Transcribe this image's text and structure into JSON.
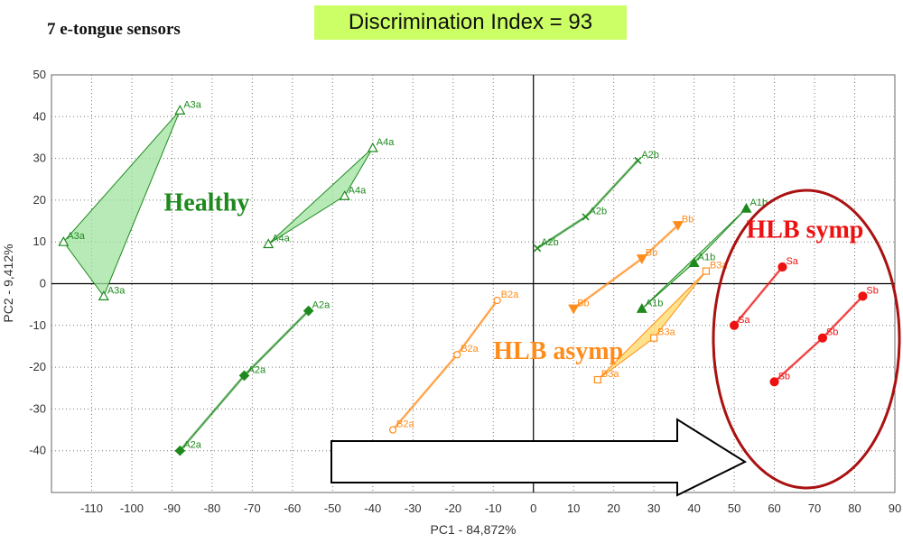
{
  "header": {
    "title": "7 e-tongue sensors",
    "discrimination_index": "Discrimination Index = 93"
  },
  "chart_data": {
    "type": "scatter",
    "xlabel": "PC1 - 84,872%",
    "ylabel": "PC2 - 9,412%",
    "xlim": [
      -120,
      90
    ],
    "ylim": [
      -50,
      50
    ],
    "xticks": [
      -110,
      -100,
      -90,
      -80,
      -70,
      -60,
      -50,
      -40,
      -30,
      -20,
      -10,
      0,
      10,
      20,
      30,
      40,
      50,
      60,
      70,
      80,
      90
    ],
    "yticks": [
      50,
      40,
      30,
      20,
      10,
      0,
      -10,
      -20,
      -30,
      -40
    ],
    "grid": true,
    "colors": {
      "healthy": "#1e8a1e",
      "healthy_fill": "#9fe39f",
      "asymp": "#ff8c1a",
      "asymp_fill": "#ffd966",
      "symp": "#ee1111",
      "ellipse": "#aa1111"
    },
    "group_labels": [
      {
        "text": "Healthy",
        "color": "#1e8a1e"
      },
      {
        "text": "HLB asymp",
        "color": "#ff8c1a"
      },
      {
        "text": "HLB symp",
        "color": "#ee1111"
      }
    ],
    "groups": [
      {
        "group": "healthy",
        "marker": "triangle",
        "filled": false,
        "polygon": true,
        "points": [
          {
            "label": "A3a",
            "x": -88,
            "y": 41.5
          },
          {
            "label": "A3a",
            "x": -117,
            "y": 10
          },
          {
            "label": "A3a",
            "x": -107,
            "y": -3
          }
        ]
      },
      {
        "group": "healthy",
        "marker": "triangle",
        "filled": false,
        "polygon": true,
        "points": [
          {
            "label": "A4a",
            "x": -40,
            "y": 32.5
          },
          {
            "label": "A4a",
            "x": -47,
            "y": 21
          },
          {
            "label": "A4a",
            "x": -66,
            "y": 9.5
          }
        ]
      },
      {
        "group": "healthy",
        "marker": "diamond",
        "filled": true,
        "polygon": false,
        "points": [
          {
            "label": "A2a",
            "x": -56,
            "y": -6.5
          },
          {
            "label": "A2a",
            "x": -72,
            "y": -22
          },
          {
            "label": "A2a",
            "x": -88,
            "y": -40
          }
        ]
      },
      {
        "group": "healthy",
        "marker": "x",
        "filled": false,
        "polygon": false,
        "points": [
          {
            "label": "A2b",
            "x": 26,
            "y": 29.5
          },
          {
            "label": "A2b",
            "x": 13,
            "y": 16
          },
          {
            "label": "A2b",
            "x": 1,
            "y": 8.5
          }
        ]
      },
      {
        "group": "healthy",
        "marker": "triangle",
        "filled": true,
        "polygon": true,
        "points": [
          {
            "label": "A1b",
            "x": 53,
            "y": 18
          },
          {
            "label": "A1b",
            "x": 40,
            "y": 5
          },
          {
            "label": "A1b",
            "x": 27,
            "y": -6
          }
        ]
      },
      {
        "group": "asymp",
        "marker": "triangle-down",
        "filled": true,
        "polygon": false,
        "points": [
          {
            "label": "Bb",
            "x": 36,
            "y": 14
          },
          {
            "label": "Bb",
            "x": 27,
            "y": 6
          },
          {
            "label": "Bb",
            "x": 10,
            "y": -6
          }
        ]
      },
      {
        "group": "asymp",
        "marker": "square",
        "filled": false,
        "polygon": true,
        "points": [
          {
            "label": "B3a",
            "x": 43,
            "y": 3
          },
          {
            "label": "B3a",
            "x": 30,
            "y": -13
          },
          {
            "label": "B3a",
            "x": 16,
            "y": -23
          }
        ]
      },
      {
        "group": "asymp",
        "marker": "circle",
        "filled": false,
        "polygon": false,
        "points": [
          {
            "label": "B2a",
            "x": -9,
            "y": -4
          },
          {
            "label": "B2a",
            "x": -19,
            "y": -17
          },
          {
            "label": "B2a",
            "x": -35,
            "y": -35
          }
        ]
      },
      {
        "group": "symp",
        "marker": "circle",
        "filled": true,
        "polygon": false,
        "points": [
          {
            "label": "Sa",
            "x": 62,
            "y": 4
          },
          {
            "label": "Sa",
            "x": 50,
            "y": -10
          }
        ]
      },
      {
        "group": "symp",
        "marker": "circle",
        "filled": true,
        "polygon": false,
        "points": [
          {
            "label": "Sb",
            "x": 82,
            "y": -3
          },
          {
            "label": "Sb",
            "x": 72,
            "y": -13
          },
          {
            "label": "Sb",
            "x": 60,
            "y": -23.5
          }
        ]
      }
    ]
  }
}
